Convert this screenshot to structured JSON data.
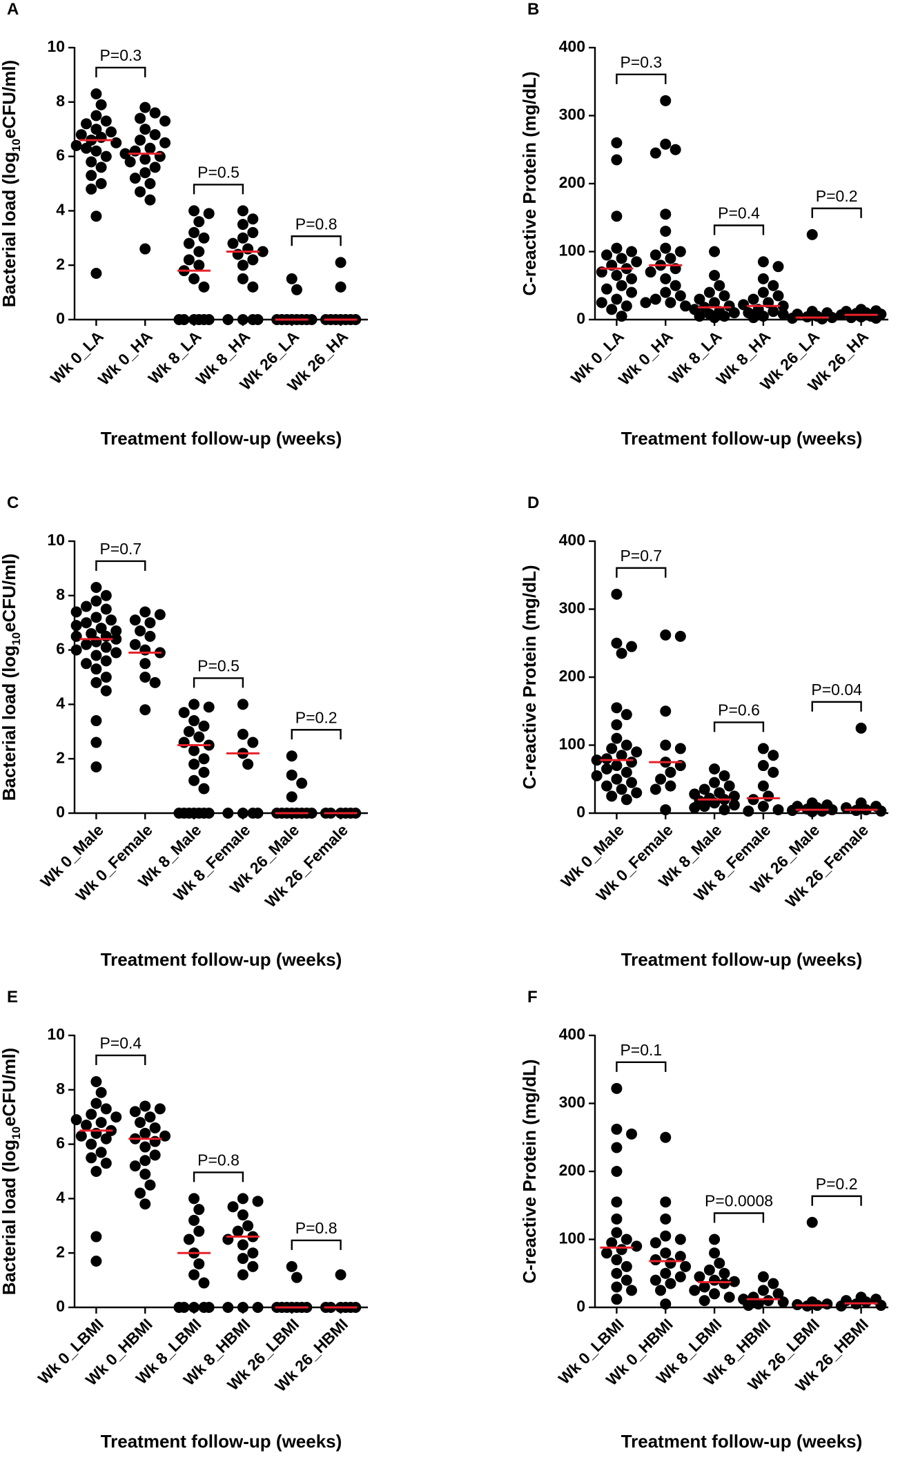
{
  "chart_data": [
    {
      "type": "dot",
      "panel": "A",
      "ylabel": [
        "Bacterial load (log",
        "10",
        "eCFU/ml)"
      ],
      "xlabel": "Treatment follow-up (weeks)",
      "categories": [
        "Wk 0_LA",
        "Wk 0_HA",
        "Wk 8_LA",
        "Wk 8_HA",
        "Wk 26_LA",
        "Wk 26_HA"
      ],
      "points": [
        [
          8.3,
          7.9,
          7.5,
          7.3,
          7.2,
          7.0,
          6.9,
          6.8,
          6.7,
          6.6,
          6.5,
          6.4,
          6.2,
          6.0,
          5.8,
          5.6,
          5.3,
          5.0,
          4.8,
          3.8,
          1.7,
          6.3
        ],
        [
          7.8,
          7.6,
          7.4,
          7.3,
          7.0,
          6.8,
          6.6,
          6.5,
          6.3,
          6.2,
          6.0,
          5.9,
          5.8,
          5.6,
          5.4,
          5.2,
          5.0,
          4.7,
          4.4,
          2.6,
          6.1
        ],
        [
          4.0,
          3.9,
          3.6,
          3.2,
          3.0,
          2.8,
          2.5,
          2.2,
          2.0,
          1.8,
          1.5,
          1.2,
          0,
          0,
          0,
          0,
          0,
          0
        ],
        [
          4.0,
          3.7,
          3.5,
          3.2,
          3.0,
          2.8,
          2.6,
          2.5,
          2.4,
          2.2,
          2.0,
          1.5,
          1.2,
          0,
          0,
          0,
          0
        ],
        [
          1.5,
          1.1,
          0,
          0,
          0,
          0,
          0,
          0,
          0,
          0
        ],
        [
          2.1,
          1.2,
          0,
          0,
          0,
          0,
          0,
          0,
          0
        ]
      ],
      "medians": [
        6.6,
        6.1,
        1.8,
        2.5,
        0,
        0
      ],
      "p_labels": [
        "P=0.3",
        "P=0.5",
        "P=0.8"
      ],
      "ylim": [
        0,
        10
      ],
      "yticks": [
        0,
        2,
        4,
        6,
        8,
        10
      ],
      "point_color": "#000000",
      "median_color": "#e8202a"
    },
    {
      "type": "dot",
      "panel": "B",
      "ylabel": [
        "C-reactive Protein (mg/dL)"
      ],
      "xlabel": "Treatment follow-up (weeks)",
      "categories": [
        "Wk 0_LA",
        "Wk 0_HA",
        "Wk 8_LA",
        "Wk 8_HA",
        "Wk 26_LA",
        "Wk 26_HA"
      ],
      "points": [
        [
          260,
          235,
          152,
          105,
          100,
          95,
          90,
          85,
          80,
          75,
          70,
          65,
          60,
          50,
          45,
          40,
          30,
          25,
          20,
          15,
          5
        ],
        [
          322,
          258,
          250,
          245,
          155,
          130,
          105,
          100,
          95,
          90,
          80,
          75,
          70,
          60,
          50,
          40,
          35,
          30,
          25,
          25,
          20
        ],
        [
          100,
          65,
          50,
          40,
          35,
          30,
          25,
          20,
          18,
          15,
          12,
          10,
          8,
          5,
          5,
          3
        ],
        [
          85,
          78,
          60,
          50,
          40,
          35,
          30,
          25,
          22,
          20,
          15,
          12,
          10,
          8,
          5,
          3
        ],
        [
          125,
          12,
          10,
          8,
          5,
          4,
          3,
          2,
          1
        ],
        [
          15,
          13,
          12,
          10,
          9,
          8,
          7,
          5,
          4,
          3,
          2
        ]
      ],
      "medians": [
        75,
        80,
        18,
        20,
        3,
        7
      ],
      "p_labels": [
        "P=0.3",
        "P=0.4",
        "P=0.2"
      ],
      "ylim": [
        0,
        400
      ],
      "yticks": [
        0,
        100,
        200,
        300,
        400
      ],
      "point_color": "#000000",
      "median_color": "#e8202a"
    },
    {
      "type": "dot",
      "panel": "C",
      "ylabel": [
        "Bacterial load (log",
        "10",
        "eCFU/ml)"
      ],
      "xlabel": "Treatment follow-up (weeks)",
      "categories": [
        "Wk 0_Male",
        "Wk 0_Female",
        "Wk 8_Male",
        "Wk 8_Female",
        "Wk 26_Male",
        "Wk 26_Female"
      ],
      "points": [
        [
          8.3,
          8.0,
          7.8,
          7.6,
          7.5,
          7.4,
          7.2,
          7.1,
          7.0,
          6.9,
          6.8,
          6.7,
          6.6,
          6.5,
          6.5,
          6.4,
          6.3,
          6.2,
          6.1,
          6.0,
          5.9,
          5.8,
          5.6,
          5.5,
          5.3,
          5.0,
          4.8,
          4.5,
          3.4,
          2.6,
          1.7
        ],
        [
          7.4,
          7.3,
          7.1,
          7.0,
          6.7,
          6.5,
          6.0,
          5.9,
          5.5,
          5.0,
          4.8,
          3.8,
          6.2
        ],
        [
          4.0,
          3.9,
          3.7,
          3.4,
          3.2,
          3.0,
          2.8,
          2.6,
          2.5,
          2.3,
          2.0,
          1.8,
          1.5,
          1.2,
          0.9,
          0,
          0,
          0,
          0,
          0,
          0,
          0
        ],
        [
          4.0,
          2.9,
          2.6,
          2.2,
          1.8,
          0,
          0,
          0,
          0
        ],
        [
          2.1,
          1.4,
          1.1,
          0.6,
          0,
          0,
          0,
          0,
          0,
          0,
          0,
          0
        ],
        [
          0,
          0,
          0,
          0,
          0,
          0
        ]
      ],
      "medians": [
        6.4,
        5.9,
        2.5,
        2.2,
        0,
        0
      ],
      "p_labels": [
        "P=0.7",
        "P=0.5",
        "P=0.2"
      ],
      "ylim": [
        0,
        10
      ],
      "yticks": [
        0,
        2,
        4,
        6,
        8,
        10
      ],
      "point_color": "#000000",
      "median_color": "#e8202a"
    },
    {
      "type": "dot",
      "panel": "D",
      "ylabel": [
        "C-reactive Protein (mg/dL)"
      ],
      "xlabel": "Treatment follow-up (weeks)",
      "categories": [
        "Wk 0_Male",
        "Wk 0_Female",
        "Wk 8_Male",
        "Wk 8_Female",
        "Wk 26_Male",
        "Wk 26_Female"
      ],
      "points": [
        [
          322,
          250,
          245,
          235,
          155,
          145,
          130,
          110,
          100,
          95,
          90,
          85,
          80,
          78,
          75,
          70,
          65,
          60,
          55,
          50,
          45,
          40,
          35,
          30,
          25,
          20
        ],
        [
          262,
          260,
          150,
          100,
          95,
          75,
          70,
          60,
          50,
          40,
          35,
          5
        ],
        [
          65,
          55,
          45,
          40,
          35,
          30,
          28,
          25,
          22,
          20,
          18,
          15,
          12,
          10,
          8,
          5
        ],
        [
          95,
          85,
          70,
          60,
          40,
          25,
          20,
          10,
          5,
          3
        ],
        [
          15,
          12,
          10,
          8,
          6,
          5,
          4,
          3,
          2
        ],
        [
          125,
          15,
          10,
          8,
          5,
          4,
          3
        ]
      ],
      "medians": [
        78,
        75,
        20,
        22,
        5,
        5
      ],
      "p_labels": [
        "P=0.7",
        "P=0.6",
        "P=0.04"
      ],
      "ylim": [
        0,
        400
      ],
      "yticks": [
        0,
        100,
        200,
        300,
        400
      ],
      "point_color": "#000000",
      "median_color": "#e8202a"
    },
    {
      "type": "dot",
      "panel": "E",
      "ylabel": [
        "Bacterial load (log",
        "10",
        "eCFU/ml)"
      ],
      "xlabel": "Treatment follow-up (weeks)",
      "categories": [
        "Wk 0_LBMI",
        "Wk 0_HBMI",
        "Wk 8_LBMI",
        "Wk 8_HBMI",
        "Wk 26_LBMI",
        "Wk 26_HBMI"
      ],
      "points": [
        [
          8.3,
          7.9,
          7.5,
          7.3,
          7.1,
          7.0,
          6.8,
          6.7,
          6.5,
          6.4,
          6.3,
          6.2,
          6.0,
          5.7,
          5.5,
          5.3,
          5.0,
          2.6,
          1.7,
          6.9
        ],
        [
          7.4,
          7.3,
          7.2,
          7.0,
          6.8,
          6.6,
          6.4,
          6.2,
          6.1,
          5.9,
          5.6,
          5.4,
          5.2,
          4.9,
          4.5,
          4.2,
          3.8,
          6.3
        ],
        [
          4.0,
          3.6,
          3.2,
          2.8,
          2.5,
          2.0,
          1.6,
          1.2,
          0.9,
          0,
          0,
          0,
          0,
          0
        ],
        [
          4.0,
          3.9,
          3.7,
          3.4,
          3.0,
          2.8,
          2.6,
          2.5,
          2.3,
          2.0,
          1.8,
          1.5,
          1.2,
          0,
          0,
          0
        ],
        [
          1.5,
          1.1,
          0,
          0,
          0,
          0,
          0,
          0,
          0
        ],
        [
          1.2,
          0,
          0,
          0,
          0,
          0,
          0
        ]
      ],
      "medians": [
        6.5,
        6.2,
        2.0,
        2.6,
        0,
        0
      ],
      "p_labels": [
        "P=0.4",
        "P=0.8",
        "P=0.8"
      ],
      "ylim": [
        0,
        10
      ],
      "yticks": [
        0,
        2,
        4,
        6,
        8,
        10
      ],
      "point_color": "#000000",
      "median_color": "#e8202a"
    },
    {
      "type": "dot",
      "panel": "F",
      "ylabel": [
        "C-reactive Protein (mg/dL)"
      ],
      "xlabel": "Treatment follow-up (weeks)",
      "categories": [
        "Wk 0_LBMI",
        "Wk 0_HBMI",
        "Wk 8_LBMI",
        "Wk 8_HBMI",
        "Wk 26_LBMI",
        "Wk 26_HBMI"
      ],
      "points": [
        [
          322,
          262,
          255,
          235,
          200,
          155,
          130,
          110,
          100,
          95,
          90,
          85,
          80,
          70,
          60,
          50,
          40,
          30,
          25,
          12
        ],
        [
          250,
          155,
          130,
          105,
          100,
          95,
          80,
          75,
          70,
          65,
          60,
          50,
          45,
          40,
          35,
          25,
          5
        ],
        [
          100,
          80,
          65,
          55,
          50,
          45,
          40,
          38,
          35,
          30,
          25,
          20,
          15,
          10
        ],
        [
          45,
          35,
          25,
          20,
          15,
          12,
          10,
          8,
          5,
          3
        ],
        [
          125,
          8,
          5,
          4,
          3,
          2
        ],
        [
          15,
          12,
          10,
          8,
          5,
          3,
          2
        ]
      ],
      "medians": [
        88,
        68,
        37,
        12,
        3,
        6
      ],
      "p_labels": [
        "P=0.1",
        "P=0.0008",
        "P=0.2"
      ],
      "ylim": [
        0,
        400
      ],
      "yticks": [
        0,
        100,
        200,
        300,
        400
      ],
      "point_color": "#000000",
      "median_color": "#e8202a"
    }
  ]
}
